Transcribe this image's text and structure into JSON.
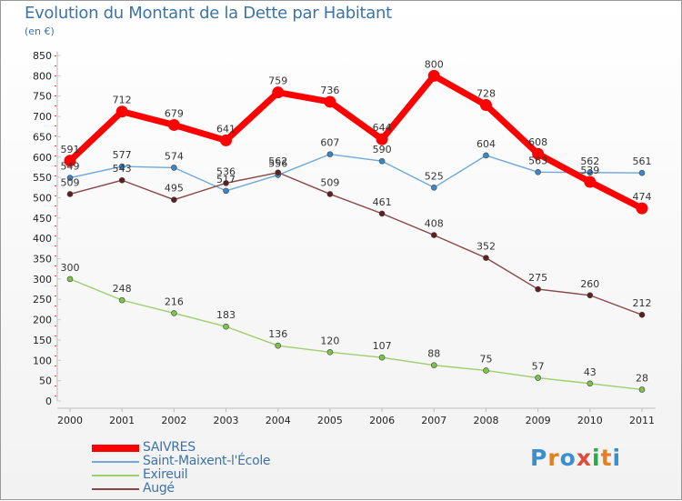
{
  "header": {
    "title": "Evolution du Montant de la Dette par Habitant",
    "unit": "(en €)"
  },
  "brand": {
    "text": "Proxiti",
    "letter_colors": [
      "#3a8fd0",
      "#e67e22",
      "#3a8fd0",
      "#e04a3a",
      "#2aa84a",
      "#e67e22",
      "#3a8fd0"
    ]
  },
  "chart_data": {
    "type": "line",
    "title": "Evolution du Montant de la Dette par Habitant",
    "ylabel": "(en €)",
    "xlabel": "",
    "x": [
      "2000",
      "2001",
      "2002",
      "2003",
      "2004",
      "2005",
      "2006",
      "2007",
      "2008",
      "2009",
      "2010",
      "2011"
    ],
    "ylim": [
      0,
      850
    ],
    "yticks": [
      0,
      50,
      100,
      150,
      200,
      250,
      300,
      350,
      400,
      450,
      500,
      550,
      600,
      650,
      700,
      750,
      800,
      850
    ],
    "grid": false,
    "legend_position": "bottom-left",
    "series": [
      {
        "name": "SAIVRES",
        "color": "#ff0000",
        "marker": "#ff0000",
        "label_color": "#333333",
        "thick": true,
        "values": [
          591,
          712,
          679,
          641,
          759,
          736,
          644,
          800,
          728,
          608,
          539,
          474
        ]
      },
      {
        "name": "Saint-Maixent-l'École",
        "color": "#6fa8dc",
        "marker": "#3d85c6",
        "label_color": "#333333",
        "thick": false,
        "values": [
          549,
          577,
          574,
          517,
          556,
          607,
          590,
          525,
          604,
          563,
          562,
          561
        ]
      },
      {
        "name": "Exireuil",
        "color": "#9ccf6e",
        "marker": "#7dc34b",
        "label_color": "#333333",
        "thick": false,
        "values": [
          300,
          248,
          216,
          183,
          136,
          120,
          107,
          88,
          75,
          57,
          43,
          28
        ]
      },
      {
        "name": "Augé",
        "color": "#8a4646",
        "marker": "#5e1f1f",
        "label_color": "#333333",
        "thick": false,
        "values": [
          509,
          543,
          495,
          536,
          562,
          509,
          461,
          408,
          352,
          275,
          260,
          212
        ]
      }
    ]
  }
}
